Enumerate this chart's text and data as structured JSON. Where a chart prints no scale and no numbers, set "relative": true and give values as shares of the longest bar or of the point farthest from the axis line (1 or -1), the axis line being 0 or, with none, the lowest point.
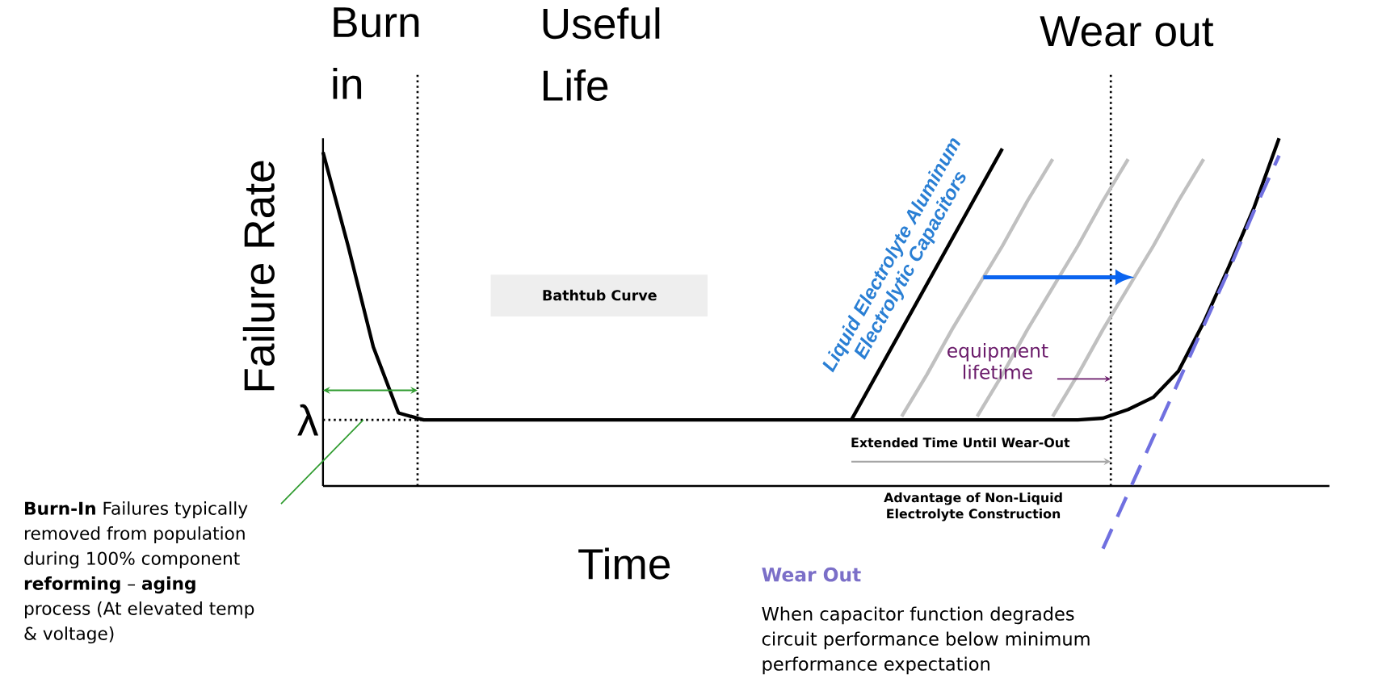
{
  "chart_data": {
    "type": "line",
    "title": "Bathtub Curve",
    "xlabel": "Time",
    "ylabel": "Failure Rate",
    "relative": true,
    "legend": false,
    "marker": "none",
    "categories": [
      null,
      null,
      null,
      null,
      null,
      null,
      null,
      null,
      null,
      null,
      null,
      null,
      null,
      null,
      null,
      null,
      null,
      null,
      null,
      null,
      null,
      null,
      null,
      null,
      null,
      null,
      null,
      null,
      null,
      null,
      null,
      null,
      null,
      null,
      null,
      null,
      null,
      null,
      null,
      null,
      null
    ],
    "series": [
      {
        "color": "#000000",
        "values": [
          0.96,
          0.69,
          0.4,
          0.21,
          0.19,
          0.19,
          0.19,
          0.19,
          0.19,
          0.19,
          0.19,
          0.19,
          0.19,
          0.19,
          0.19,
          0.19,
          0.19,
          0.19,
          0.19,
          0.19,
          0.19,
          0.19,
          0.19,
          0.19,
          0.19,
          0.19,
          0.19,
          0.19,
          0.19,
          0.19,
          0.19,
          0.195,
          0.22,
          0.255,
          0.33,
          0.47,
          0.63,
          0.8,
          1.0,
          null,
          null
        ]
      },
      {
        "name": "Liquid Electrolyte Aluminum Electrolytic Capacitors",
        "color": "#000000",
        "values": [
          null,
          null,
          null,
          null,
          null,
          null,
          null,
          null,
          null,
          null,
          null,
          null,
          null,
          null,
          null,
          null,
          null,
          null,
          null,
          null,
          null,
          0.19,
          0.32,
          0.45,
          0.58,
          0.71,
          0.84,
          0.97,
          null,
          null,
          null,
          null,
          null,
          null,
          null,
          null,
          null,
          null,
          null,
          null,
          null
        ]
      },
      {
        "color": "#c0c0c0",
        "values": [
          null,
          null,
          null,
          null,
          null,
          null,
          null,
          null,
          null,
          null,
          null,
          null,
          null,
          null,
          null,
          null,
          null,
          null,
          null,
          null,
          null,
          null,
          null,
          0.2,
          0.32,
          0.45,
          0.57,
          0.69,
          0.82,
          0.94,
          null,
          null,
          null,
          null,
          null,
          null,
          null,
          null,
          null,
          null,
          null
        ]
      },
      {
        "color": "#c0c0c0",
        "values": [
          null,
          null,
          null,
          null,
          null,
          null,
          null,
          null,
          null,
          null,
          null,
          null,
          null,
          null,
          null,
          null,
          null,
          null,
          null,
          null,
          null,
          null,
          null,
          null,
          null,
          null,
          0.2,
          0.32,
          0.45,
          0.57,
          0.69,
          0.82,
          0.94,
          null,
          null,
          null,
          null,
          null,
          null,
          null,
          null
        ]
      },
      {
        "color": "#c0c0c0",
        "values": [
          null,
          null,
          null,
          null,
          null,
          null,
          null,
          null,
          null,
          null,
          null,
          null,
          null,
          null,
          null,
          null,
          null,
          null,
          null,
          null,
          null,
          null,
          null,
          null,
          null,
          null,
          null,
          null,
          null,
          0.2,
          0.32,
          0.45,
          0.57,
          0.69,
          0.82,
          0.94,
          null,
          null,
          null,
          null,
          null
        ]
      },
      {
        "color": "#7070e0",
        "line_style": "dashed",
        "values": [
          null,
          null,
          null,
          null,
          null,
          null,
          null,
          null,
          null,
          null,
          null,
          null,
          null,
          null,
          null,
          null,
          null,
          null,
          null,
          null,
          null,
          null,
          null,
          null,
          null,
          null,
          null,
          null,
          null,
          null,
          null,
          -0.18,
          -0.02,
          0.14,
          0.3,
          0.46,
          0.62,
          0.79,
          0.95,
          null,
          null
        ]
      }
    ],
    "ref_lines": [
      {
        "axis": "y",
        "value": 0.19,
        "label": "λ",
        "line_style": "dotted",
        "color": "#000000"
      }
    ],
    "annotations": [
      "Burn in",
      "Useful Life",
      "Wear out",
      "equipment lifetime",
      "Extended Time Until Wear-Out",
      "Advantage of Non-Liquid Electrolyte Construction",
      "**Burn-In** Failures typically removed from population during 100% component **reforming** – **aging** process (At elevated temp & voltage)",
      "Wear Out",
      "When capacitor function degrades circuit performance below minimum performance expectation"
    ]
  }
}
